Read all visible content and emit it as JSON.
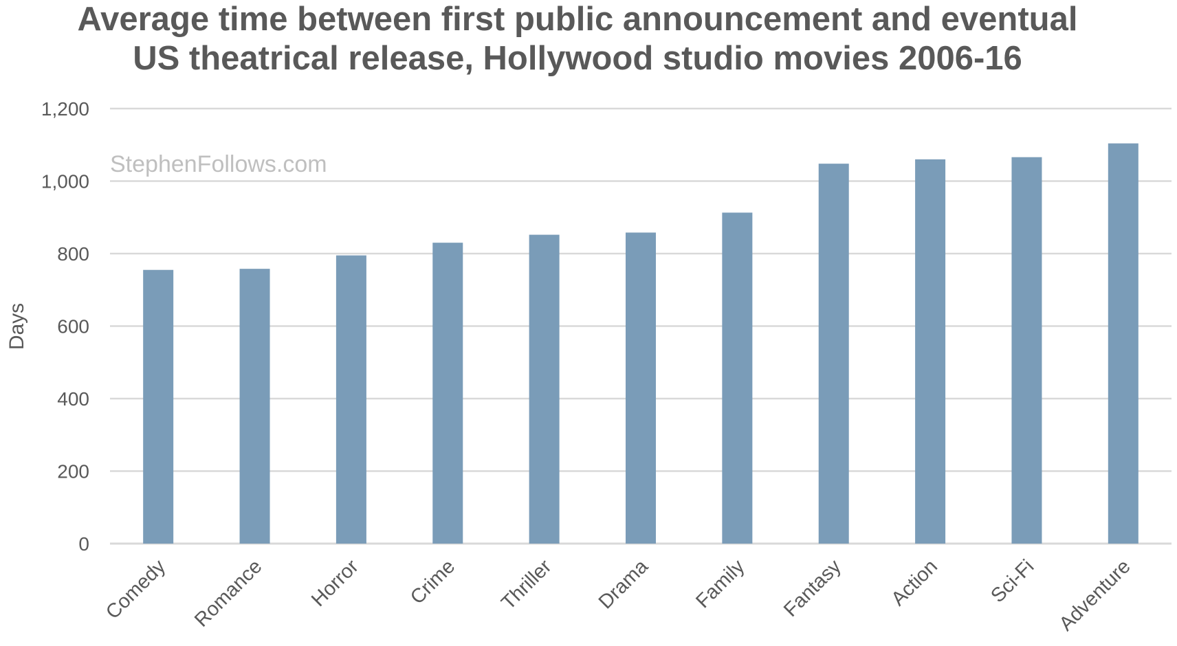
{
  "chart_data": {
    "type": "bar",
    "title_lines": [
      "Average time between first public announcement and eventual",
      "US theatrical release, Hollywood studio movies 2006-16"
    ],
    "watermark": "StephenFollows.com",
    "xlabel": "",
    "ylabel": "Days",
    "ylim": [
      0,
      1200
    ],
    "yticks": [
      0,
      200,
      400,
      600,
      800,
      1000,
      1200
    ],
    "ytick_labels": [
      "0",
      "200",
      "400",
      "600",
      "800",
      "1,000",
      "1,200"
    ],
    "categories": [
      "Comedy",
      "Romance",
      "Horror",
      "Crime",
      "Thriller",
      "Drama",
      "Family",
      "Fantasy",
      "Action",
      "Sci-Fi",
      "Adventure"
    ],
    "values": [
      755,
      758,
      795,
      830,
      852,
      858,
      913,
      1048,
      1060,
      1066,
      1104
    ],
    "grid": true,
    "legend": "none",
    "colors": {
      "bar": "#7a9cb8",
      "grid": "#d9d9d9",
      "text": "#595959",
      "watermark": "#bfbfbf"
    }
  }
}
